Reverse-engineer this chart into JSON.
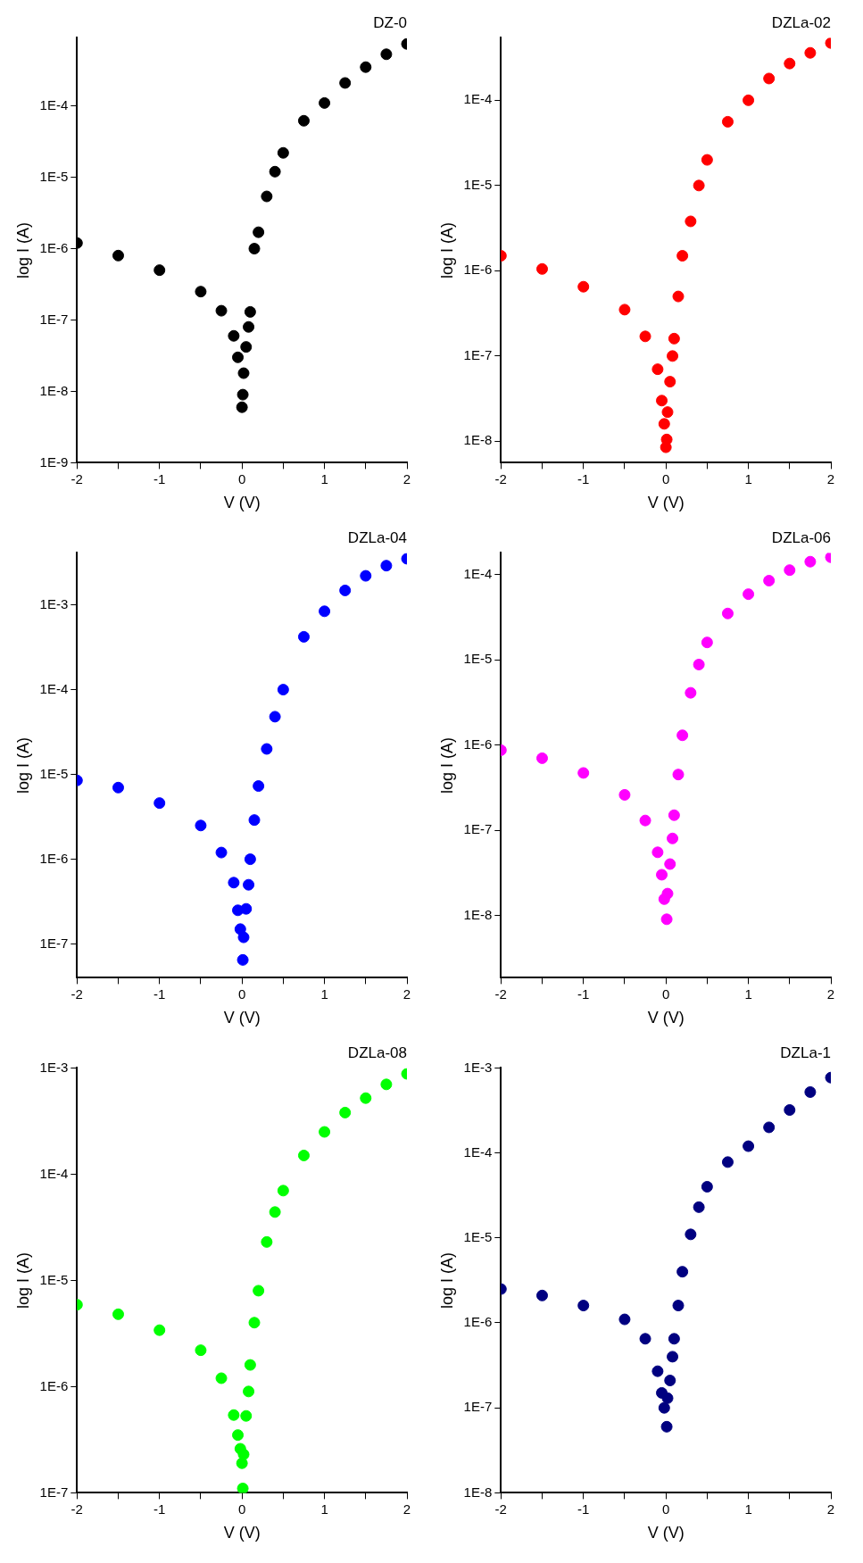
{
  "chart_data": [
    {
      "type": "scatter",
      "title": "DZ-0",
      "xlabel": "V (V)",
      "ylabel": "log I (A)",
      "log": "y",
      "marker": "circle",
      "x": [
        -2,
        -1.5,
        -1,
        -0.5,
        -0.25,
        -0.1,
        -0.05,
        -0.02,
        0,
        0.01,
        0.02,
        0.05,
        0.08,
        0.1,
        0.15,
        0.2,
        0.3,
        0.4,
        0.5,
        0.75,
        1,
        1.25,
        1.5,
        1.75,
        2
      ],
      "series": [
        {
          "color": "#000000",
          "values": [
            1.2e-06,
            8e-07,
            5e-07,
            2.5e-07,
            1.35e-07,
            6e-08,
            3e-08,
            null,
            6e-09,
            9e-09,
            1.8e-08,
            4.2e-08,
            8e-08,
            1.3e-07,
            1e-06,
            1.7e-06,
            5.4e-06,
            1.2e-05,
            2.2e-05,
            6.2e-05,
            0.00011,
            0.00021,
            0.00035,
            0.00053,
            0.00074
          ]
        }
      ],
      "xlim": [
        -2,
        2
      ],
      "xticks": [
        -2,
        {
          "value": -1.5,
          "label": null
        },
        -1,
        {
          "value": -0.5,
          "label": null
        },
        0,
        {
          "value": 0.5,
          "label": null
        },
        1,
        {
          "value": 1.5,
          "label": null
        },
        2
      ],
      "ylim": [
        1e-09,
        0.0009
      ],
      "yticks": [
        {
          "value": 1e-09,
          "label": "1E-9"
        },
        {
          "value": 1e-08,
          "label": "1E-8"
        },
        {
          "value": 1e-07,
          "label": "1E-7"
        },
        {
          "value": 1e-06,
          "label": "1E-6"
        },
        {
          "value": 1e-05,
          "label": "1E-5"
        },
        {
          "value": 0.0001,
          "label": "1E-4"
        }
      ]
    },
    {
      "type": "scatter",
      "title": "DZLa-02",
      "xlabel": "V (V)",
      "ylabel": "log I (A)",
      "log": "y",
      "marker": "circle",
      "x": [
        -2,
        -1.5,
        -1,
        -0.5,
        -0.25,
        -0.1,
        -0.05,
        -0.02,
        0,
        0.01,
        0.02,
        0.05,
        0.08,
        0.1,
        0.15,
        0.2,
        0.3,
        0.4,
        0.5,
        0.75,
        1,
        1.25,
        1.5,
        1.75,
        2
      ],
      "series": [
        {
          "color": "#ff0000",
          "values": [
            1.5e-06,
            1.05e-06,
            6.5e-07,
            3.5e-07,
            1.7e-07,
            7e-08,
            3e-08,
            1.6e-08,
            8.5e-09,
            1.05e-08,
            2.2e-08,
            5e-08,
            1e-07,
            1.6e-07,
            5e-07,
            1.5e-06,
            3.8e-06,
            1e-05,
            2e-05,
            5.6e-05,
            0.0001,
            0.00018,
            0.00027,
            0.00036,
            0.00047
          ]
        }
      ],
      "xlim": [
        -2,
        2
      ],
      "xticks": [
        -2,
        {
          "value": -1.5,
          "label": null
        },
        -1,
        {
          "value": -0.5,
          "label": null
        },
        0,
        {
          "value": 0.5,
          "label": null
        },
        1,
        {
          "value": 1.5,
          "label": null
        },
        2
      ],
      "ylim": [
        5.6e-09,
        0.00054
      ],
      "yticks": [
        {
          "value": 1e-08,
          "label": "1E-8"
        },
        {
          "value": 1e-07,
          "label": "1E-7"
        },
        {
          "value": 1e-06,
          "label": "1E-6"
        },
        {
          "value": 1e-05,
          "label": "1E-5"
        },
        {
          "value": 0.0001,
          "label": "1E-4"
        }
      ]
    },
    {
      "type": "scatter",
      "title": "DZLa-04",
      "xlabel": "V (V)",
      "ylabel": "log I (A)",
      "log": "y",
      "marker": "circle",
      "x": [
        -2,
        -1.5,
        -1,
        -0.5,
        -0.25,
        -0.1,
        -0.05,
        -0.02,
        0,
        0.01,
        0.02,
        0.05,
        0.08,
        0.1,
        0.15,
        0.2,
        0.3,
        0.4,
        0.5,
        0.75,
        1,
        1.25,
        1.5,
        1.75,
        2
      ],
      "series": [
        {
          "color": "#0000ff",
          "values": [
            8.5e-06,
            7e-06,
            4.6e-06,
            2.5e-06,
            1.2e-06,
            5.3e-07,
            2.5e-07,
            1.5e-07,
            null,
            6.5e-08,
            1.2e-07,
            2.6e-07,
            5e-07,
            1e-06,
            2.9e-06,
            7.3e-06,
            2e-05,
            4.8e-05,
            0.0001,
            0.00042,
            0.00084,
            0.00148,
            0.0022,
            0.0029,
            0.0035
          ]
        }
      ],
      "xlim": [
        -2,
        2
      ],
      "xticks": [
        -2,
        {
          "value": -1.5,
          "label": null
        },
        -1,
        {
          "value": -0.5,
          "label": null
        },
        0,
        {
          "value": 0.5,
          "label": null
        },
        1,
        {
          "value": 1.5,
          "label": null
        },
        2
      ],
      "ylim": [
        4e-08,
        0.0041
      ],
      "yticks": [
        {
          "value": 1e-07,
          "label": "1E-7"
        },
        {
          "value": 1e-06,
          "label": "1E-6"
        },
        {
          "value": 1e-05,
          "label": "1E-5"
        },
        {
          "value": 0.0001,
          "label": "1E-4"
        },
        {
          "value": 0.001,
          "label": "1E-3"
        }
      ]
    },
    {
      "type": "scatter",
      "title": "DZLa-06",
      "xlabel": "V (V)",
      "ylabel": "log I (A)",
      "log": "y",
      "marker": "circle",
      "x": [
        -2,
        -1.5,
        -1,
        -0.5,
        -0.25,
        -0.1,
        -0.05,
        -0.02,
        0,
        0.01,
        0.02,
        0.05,
        0.08,
        0.1,
        0.15,
        0.2,
        0.3,
        0.4,
        0.5,
        0.75,
        1,
        1.25,
        1.5,
        1.75,
        2
      ],
      "series": [
        {
          "color": "#ff00ff",
          "values": [
            8.7e-07,
            7e-07,
            4.7e-07,
            2.6e-07,
            1.3e-07,
            5.5e-08,
            3e-08,
            1.55e-08,
            null,
            9e-09,
            1.8e-08,
            4e-08,
            8e-08,
            1.5e-07,
            4.5e-07,
            1.3e-06,
            4.1e-06,
            8.8e-06,
            1.6e-05,
            3.5e-05,
            5.9e-05,
            8.5e-05,
            0.000113,
            0.000142,
            0.00016
          ]
        }
      ],
      "xlim": [
        -2,
        2
      ],
      "xticks": [
        -2,
        {
          "value": -1.5,
          "label": null
        },
        -1,
        {
          "value": -0.5,
          "label": null
        },
        0,
        {
          "value": 0.5,
          "label": null
        },
        1,
        {
          "value": 1.5,
          "label": null
        },
        2
      ],
      "ylim": [
        1.85e-09,
        0.00018
      ],
      "yticks": [
        {
          "value": 1e-08,
          "label": "1E-8"
        },
        {
          "value": 1e-07,
          "label": "1E-7"
        },
        {
          "value": 1e-06,
          "label": "1E-6"
        },
        {
          "value": 1e-05,
          "label": "1E-5"
        },
        {
          "value": 0.0001,
          "label": "1E-4"
        }
      ]
    },
    {
      "type": "scatter",
      "title": "DZLa-08",
      "xlabel": "V (V)",
      "ylabel": "log I (A)",
      "log": "y",
      "marker": "circle",
      "x": [
        -2,
        -1.5,
        -1,
        -0.5,
        -0.25,
        -0.1,
        -0.05,
        -0.02,
        0,
        0.01,
        0.02,
        0.05,
        0.08,
        0.1,
        0.15,
        0.2,
        0.3,
        0.4,
        0.5,
        0.75,
        1,
        1.25,
        1.5,
        1.75,
        2
      ],
      "series": [
        {
          "color": "#00ff00",
          "values": [
            5.9e-06,
            4.8e-06,
            3.4e-06,
            2.2e-06,
            1.2e-06,
            5.4e-07,
            3.5e-07,
            2.6e-07,
            1.9e-07,
            1.1e-07,
            2.3e-07,
            5.3e-07,
            9e-07,
            1.6e-06,
            4e-06,
            8e-06,
            2.3e-05,
            4.4e-05,
            7e-05,
            0.00015,
            0.00025,
            0.00038,
            0.00052,
            0.0007,
            0.00088
          ]
        }
      ],
      "xlim": [
        -2,
        2
      ],
      "xticks": [
        -2,
        {
          "value": -1.5,
          "label": null
        },
        -1,
        {
          "value": -0.5,
          "label": null
        },
        0,
        {
          "value": 0.5,
          "label": null
        },
        1,
        {
          "value": 1.5,
          "label": null
        },
        2
      ],
      "ylim": [
        1e-07,
        0.001
      ],
      "yticks": [
        {
          "value": 1e-07,
          "label": "1E-7"
        },
        {
          "value": 1e-06,
          "label": "1E-6"
        },
        {
          "value": 1e-05,
          "label": "1E-5"
        },
        {
          "value": 0.0001,
          "label": "1E-4"
        },
        {
          "value": 0.001,
          "label": "1E-3"
        }
      ]
    },
    {
      "type": "scatter",
      "title": "DZLa-1",
      "xlabel": "V (V)",
      "ylabel": "log I (A)",
      "log": "y",
      "marker": "circle",
      "x": [
        -2,
        -1.5,
        -1,
        -0.5,
        -0.25,
        -0.1,
        -0.05,
        -0.02,
        0,
        0.01,
        0.02,
        0.05,
        0.08,
        0.1,
        0.15,
        0.2,
        0.3,
        0.4,
        0.5,
        0.75,
        1,
        1.25,
        1.5,
        1.75,
        2
      ],
      "series": [
        {
          "color": "#000080",
          "values": [
            2.5e-06,
            2.1e-06,
            1.6e-06,
            1.1e-06,
            6.5e-07,
            2.7e-07,
            1.5e-07,
            1e-07,
            null,
            6e-08,
            1.3e-07,
            2.1e-07,
            4e-07,
            6.5e-07,
            1.6e-06,
            4e-06,
            1.1e-05,
            2.3e-05,
            4e-05,
            7.8e-05,
            0.00012,
            0.0002,
            0.00032,
            0.00052,
            0.00077
          ]
        }
      ],
      "xlim": [
        -2,
        2
      ],
      "xticks": [
        -2,
        {
          "value": -1.5,
          "label": null
        },
        -1,
        {
          "value": -0.5,
          "label": null
        },
        0,
        {
          "value": 0.5,
          "label": null
        },
        1,
        {
          "value": 1.5,
          "label": null
        },
        2
      ],
      "ylim": [
        1e-08,
        0.001
      ],
      "yticks": [
        {
          "value": 1e-08,
          "label": "1E-8"
        },
        {
          "value": 1e-07,
          "label": "1E-7"
        },
        {
          "value": 1e-06,
          "label": "1E-6"
        },
        {
          "value": 1e-05,
          "label": "1E-5"
        },
        {
          "value": 0.0001,
          "label": "1E-4"
        },
        {
          "value": 0.001,
          "label": "1E-3"
        }
      ]
    }
  ]
}
